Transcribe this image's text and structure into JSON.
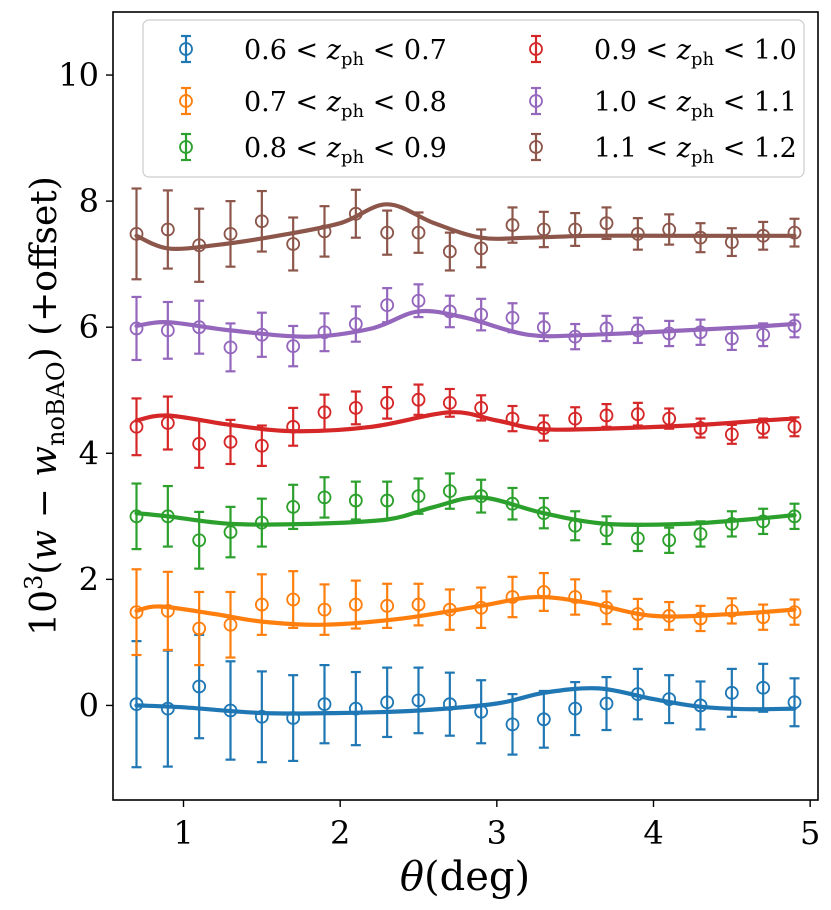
{
  "chart_data": {
    "type": "scatter",
    "title": "",
    "xlabel": "θ(deg)",
    "xlabel_parts": {
      "symbol": "θ",
      "unit": "(deg)"
    },
    "ylabel": "10³(w − w_noBAO) (+offset)",
    "ylabel_parts": {
      "base": "10",
      "exp": "3",
      "open": "(",
      "w": "w",
      "minus": " − ",
      "w2": "w",
      "sub": "noBAO",
      "close": ")",
      "offset": " (+offset)"
    },
    "xlim": [
      0.55,
      5.05
    ],
    "ylim": [
      -1.5,
      11.0
    ],
    "xticks": [
      1,
      2,
      3,
      4,
      5
    ],
    "yticks": [
      0,
      2,
      4,
      6,
      8,
      10
    ],
    "grid": false,
    "legend_position": "top",
    "x": [
      0.7,
      0.9,
      1.1,
      1.3,
      1.5,
      1.7,
      1.9,
      2.1,
      2.3,
      2.5,
      2.7,
      2.9,
      3.1,
      3.3,
      3.5,
      3.7,
      3.9,
      4.1,
      4.3,
      4.5,
      4.7,
      4.9
    ],
    "series": [
      {
        "name": "0.6 < z_ph < 0.7",
        "legend": {
          "lo": "0.6",
          "z": "z",
          "sub": "ph",
          "hi": "0.7"
        },
        "color": "#1f77b4",
        "values": [
          0.02,
          -0.05,
          0.3,
          -0.08,
          -0.18,
          -0.2,
          0.02,
          -0.05,
          0.05,
          0.08,
          0.02,
          -0.1,
          -0.3,
          -0.22,
          -0.05,
          0.03,
          0.18,
          0.1,
          0.0,
          0.2,
          0.28,
          0.05
        ],
        "errors": [
          1.0,
          0.92,
          0.82,
          0.78,
          0.72,
          0.68,
          0.62,
          0.58,
          0.55,
          0.52,
          0.5,
          0.5,
          0.48,
          0.45,
          0.42,
          0.42,
          0.4,
          0.38,
          0.38,
          0.38,
          0.38,
          0.38
        ],
        "model_x": [
          0.7,
          1.0,
          1.5,
          2.0,
          2.5,
          3.0,
          3.3,
          3.65,
          4.0,
          4.3,
          4.6,
          4.9
        ],
        "model_y": [
          0.0,
          -0.03,
          -0.12,
          -0.12,
          -0.08,
          0.03,
          0.2,
          0.27,
          0.1,
          -0.02,
          -0.06,
          -0.05
        ]
      },
      {
        "name": "0.7 < z_ph < 0.8",
        "legend": {
          "lo": "0.7",
          "z": "z",
          "sub": "ph",
          "hi": "0.8"
        },
        "color": "#ff7f0e",
        "values": [
          1.48,
          1.5,
          1.22,
          1.28,
          1.6,
          1.68,
          1.52,
          1.6,
          1.58,
          1.6,
          1.52,
          1.55,
          1.72,
          1.8,
          1.72,
          1.55,
          1.45,
          1.42,
          1.38,
          1.5,
          1.4,
          1.48
        ],
        "errors": [
          0.68,
          0.62,
          0.58,
          0.52,
          0.48,
          0.45,
          0.4,
          0.38,
          0.35,
          0.33,
          0.32,
          0.32,
          0.32,
          0.3,
          0.28,
          0.26,
          0.24,
          0.22,
          0.2,
          0.2,
          0.2,
          0.2
        ],
        "model_x": [
          0.7,
          0.85,
          1.2,
          1.5,
          1.9,
          2.4,
          2.9,
          3.25,
          3.6,
          4.0,
          4.5,
          4.9
        ],
        "model_y": [
          1.5,
          1.57,
          1.45,
          1.33,
          1.28,
          1.38,
          1.58,
          1.72,
          1.62,
          1.42,
          1.45,
          1.52
        ]
      },
      {
        "name": "0.8 < z_ph < 0.9",
        "legend": {
          "lo": "0.8",
          "z": "z",
          "sub": "ph",
          "hi": "0.9"
        },
        "color": "#2ca02c",
        "values": [
          3.0,
          3.0,
          2.62,
          2.75,
          2.9,
          3.15,
          3.3,
          3.25,
          3.25,
          3.32,
          3.4,
          3.32,
          3.2,
          3.05,
          2.85,
          2.78,
          2.65,
          2.62,
          2.72,
          2.88,
          2.92,
          3.0
        ],
        "errors": [
          0.52,
          0.48,
          0.45,
          0.4,
          0.38,
          0.35,
          0.32,
          0.3,
          0.3,
          0.28,
          0.28,
          0.26,
          0.25,
          0.24,
          0.23,
          0.22,
          0.2,
          0.2,
          0.2,
          0.2,
          0.2,
          0.2
        ],
        "model_x": [
          0.7,
          0.9,
          1.3,
          1.8,
          2.3,
          2.6,
          2.9,
          3.3,
          3.7,
          4.2,
          4.6,
          4.9
        ],
        "model_y": [
          3.05,
          3.0,
          2.88,
          2.88,
          2.95,
          3.15,
          3.3,
          3.05,
          2.88,
          2.88,
          2.95,
          3.02
        ]
      },
      {
        "name": "0.9 < z_ph < 1.0",
        "legend": {
          "lo": "0.9",
          "z": "z",
          "sub": "ph",
          "hi": "1.0"
        },
        "color": "#d62728",
        "values": [
          4.42,
          4.48,
          4.15,
          4.18,
          4.12,
          4.42,
          4.65,
          4.72,
          4.8,
          4.85,
          4.8,
          4.72,
          4.55,
          4.4,
          4.55,
          4.6,
          4.62,
          4.55,
          4.4,
          4.3,
          4.4,
          4.42
        ],
        "errors": [
          0.45,
          0.42,
          0.38,
          0.35,
          0.32,
          0.3,
          0.28,
          0.26,
          0.25,
          0.24,
          0.22,
          0.2,
          0.2,
          0.2,
          0.18,
          0.18,
          0.18,
          0.16,
          0.15,
          0.15,
          0.15,
          0.15
        ],
        "model_x": [
          0.7,
          0.9,
          1.3,
          1.7,
          2.2,
          2.7,
          3.0,
          3.3,
          3.8,
          4.3,
          4.7,
          4.9
        ],
        "model_y": [
          4.52,
          4.6,
          4.45,
          4.35,
          4.42,
          4.65,
          4.52,
          4.38,
          4.4,
          4.45,
          4.52,
          4.55
        ]
      },
      {
        "name": "1.0 < z_ph < 1.1",
        "legend": {
          "lo": "1.0",
          "z": "z",
          "sub": "ph",
          "hi": "1.1"
        },
        "color": "#9467bd",
        "values": [
          5.98,
          5.95,
          6.0,
          5.68,
          5.88,
          5.7,
          5.92,
          6.05,
          6.35,
          6.42,
          6.25,
          6.2,
          6.15,
          6.0,
          5.85,
          5.98,
          5.95,
          5.9,
          5.92,
          5.82,
          5.88,
          6.02
        ],
        "errors": [
          0.5,
          0.45,
          0.42,
          0.38,
          0.35,
          0.32,
          0.3,
          0.28,
          0.27,
          0.26,
          0.25,
          0.25,
          0.23,
          0.22,
          0.2,
          0.2,
          0.2,
          0.2,
          0.2,
          0.18,
          0.18,
          0.18
        ],
        "model_x": [
          0.7,
          0.9,
          1.3,
          1.8,
          2.2,
          2.5,
          2.8,
          3.2,
          3.6,
          4.2,
          4.6,
          4.9
        ],
        "model_y": [
          6.02,
          6.08,
          5.95,
          5.85,
          5.98,
          6.25,
          6.15,
          5.88,
          5.88,
          5.95,
          6.0,
          6.05
        ]
      },
      {
        "name": "1.1 < z_ph < 1.2",
        "legend": {
          "lo": "1.1",
          "z": "z",
          "sub": "ph",
          "hi": "1.2"
        },
        "color": "#8c564b",
        "values": [
          7.48,
          7.55,
          7.3,
          7.48,
          7.68,
          7.32,
          7.52,
          7.8,
          7.5,
          7.5,
          7.2,
          7.25,
          7.62,
          7.55,
          7.55,
          7.65,
          7.48,
          7.55,
          7.42,
          7.35,
          7.45,
          7.5
        ],
        "errors": [
          0.72,
          0.62,
          0.58,
          0.52,
          0.48,
          0.42,
          0.4,
          0.38,
          0.35,
          0.32,
          0.3,
          0.3,
          0.28,
          0.28,
          0.26,
          0.25,
          0.25,
          0.24,
          0.23,
          0.22,
          0.22,
          0.22
        ],
        "model_x": [
          0.7,
          0.9,
          1.2,
          1.6,
          2.0,
          2.3,
          2.6,
          2.9,
          3.2,
          3.6,
          4.2,
          4.9
        ],
        "model_y": [
          7.45,
          7.25,
          7.3,
          7.45,
          7.65,
          7.95,
          7.65,
          7.42,
          7.42,
          7.45,
          7.45,
          7.45
        ]
      }
    ]
  }
}
